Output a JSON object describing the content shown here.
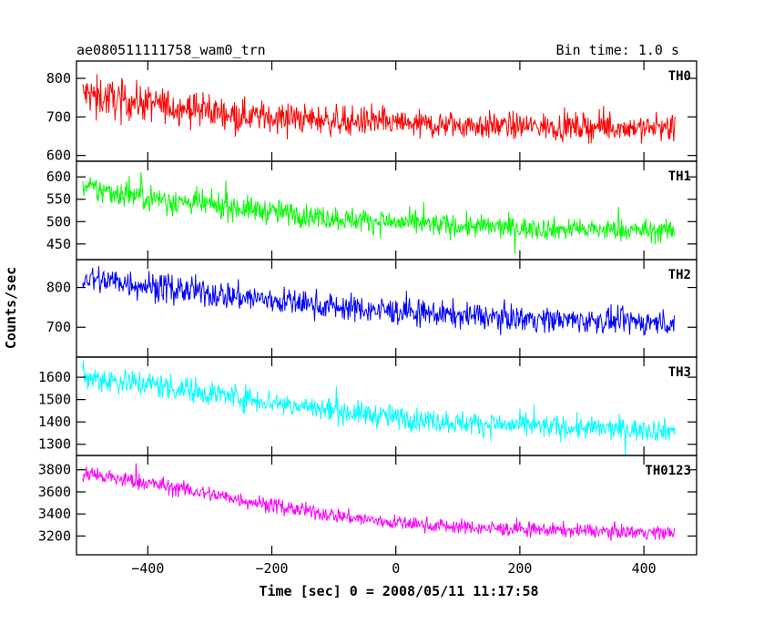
{
  "header": {
    "title": "ae080511111758_wam0_trn",
    "bin_time": "Bin time: 1.0 s"
  },
  "chart_data": {
    "type": "line",
    "title": "ae080511111758_wam0_trn",
    "subtitle": "Bin time: 1.0 s",
    "xlabel": "Time [sec] 0 = 2008/05/11 11:17:58",
    "ylabel": "Counts/sec",
    "xlim": [
      -515,
      485
    ],
    "x_ticks": [
      -400,
      -200,
      0,
      200,
      400
    ],
    "x_tick_labels": [
      "−400",
      "−200",
      "0",
      "200",
      "400"
    ],
    "x_start": -505,
    "x_end": 450,
    "step": 1.0,
    "grid": false,
    "legend": "none",
    "series": [
      {
        "name": "TH0",
        "color": "#ff0000",
        "ylim": [
          585,
          845
        ],
        "y_ticks": [
          600,
          700,
          800
        ],
        "x": [
          -505,
          -450,
          -400,
          -350,
          -300,
          -250,
          -200,
          -150,
          -100,
          -50,
          0,
          50,
          100,
          150,
          200,
          250,
          300,
          350,
          400,
          450
        ],
        "mean": [
          760,
          745,
          735,
          725,
          715,
          705,
          700,
          695,
          690,
          688,
          683,
          680,
          679,
          677,
          676,
          675,
          674,
          673,
          672,
          670
        ],
        "spread": [
          45,
          45,
          42,
          40,
          38,
          36,
          35,
          34,
          34,
          33,
          33,
          32,
          32,
          32,
          31,
          31,
          31,
          30,
          30,
          30
        ]
      },
      {
        "name": "TH1",
        "color": "#00ff00",
        "ylim": [
          415,
          635
        ],
        "y_ticks": [
          450,
          500,
          550,
          600
        ],
        "x": [
          -505,
          -450,
          -400,
          -350,
          -300,
          -250,
          -200,
          -150,
          -100,
          -50,
          0,
          50,
          100,
          150,
          200,
          250,
          300,
          350,
          400,
          450
        ],
        "mean": [
          575,
          565,
          555,
          545,
          537,
          530,
          522,
          515,
          508,
          503,
          498,
          494,
          490,
          488,
          486,
          484,
          482,
          481,
          480,
          478
        ],
        "spread": [
          28,
          28,
          27,
          26,
          26,
          25,
          25,
          24,
          24,
          24,
          23,
          23,
          23,
          23,
          22,
          22,
          22,
          22,
          22,
          22
        ]
      },
      {
        "name": "TH2",
        "color": "#0000ff",
        "ylim": [
          625,
          870
        ],
        "y_ticks": [
          700,
          800
        ],
        "x": [
          -505,
          -450,
          -400,
          -350,
          -300,
          -250,
          -200,
          -150,
          -100,
          -50,
          0,
          50,
          100,
          150,
          200,
          250,
          300,
          350,
          400,
          450
        ],
        "mean": [
          822,
          815,
          805,
          795,
          785,
          776,
          768,
          760,
          752,
          745,
          740,
          735,
          730,
          726,
          723,
          720,
          717,
          715,
          713,
          711
        ],
        "spread": [
          34,
          34,
          33,
          33,
          32,
          32,
          31,
          31,
          30,
          30,
          30,
          29,
          29,
          29,
          29,
          28,
          28,
          28,
          28,
          28
        ]
      },
      {
        "name": "TH3",
        "color": "#00ffff",
        "ylim": [
          1250,
          1690
        ],
        "y_ticks": [
          1300,
          1400,
          1500,
          1600
        ],
        "x": [
          -505,
          -450,
          -400,
          -350,
          -300,
          -250,
          -200,
          -150,
          -100,
          -50,
          0,
          50,
          100,
          150,
          200,
          250,
          300,
          350,
          400,
          450
        ],
        "mean": [
          1600,
          1585,
          1570,
          1550,
          1530,
          1510,
          1490,
          1470,
          1450,
          1435,
          1420,
          1408,
          1398,
          1390,
          1383,
          1377,
          1372,
          1368,
          1365,
          1362
        ],
        "spread": [
          55,
          55,
          54,
          53,
          52,
          51,
          50,
          50,
          49,
          48,
          48,
          47,
          47,
          47,
          46,
          46,
          46,
          45,
          45,
          45
        ]
      },
      {
        "name": "TH0123",
        "color": "#ff00ff",
        "ylim": [
          3030,
          3930
        ],
        "y_ticks": [
          3200,
          3400,
          3600,
          3800
        ],
        "x": [
          -505,
          -450,
          -400,
          -350,
          -300,
          -250,
          -200,
          -150,
          -100,
          -50,
          0,
          50,
          100,
          150,
          200,
          250,
          300,
          350,
          400,
          450
        ],
        "mean": [
          3760,
          3720,
          3680,
          3630,
          3580,
          3530,
          3480,
          3430,
          3390,
          3350,
          3320,
          3300,
          3285,
          3270,
          3262,
          3255,
          3248,
          3242,
          3236,
          3230
        ],
        "spread": [
          70,
          70,
          68,
          66,
          65,
          64,
          62,
          62,
          61,
          60,
          60,
          59,
          58,
          58,
          58,
          57,
          57,
          57,
          56,
          56
        ]
      }
    ]
  }
}
